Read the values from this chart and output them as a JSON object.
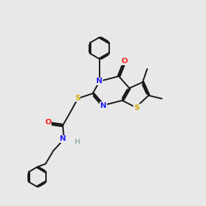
{
  "bg_color": "#e8e8e8",
  "bond_color": "#1a1a1a",
  "colors": {
    "N": "#2020ff",
    "O": "#ff2020",
    "S": "#ccaa00",
    "H": "#6a9a8a",
    "C": "#1a1a1a"
  }
}
